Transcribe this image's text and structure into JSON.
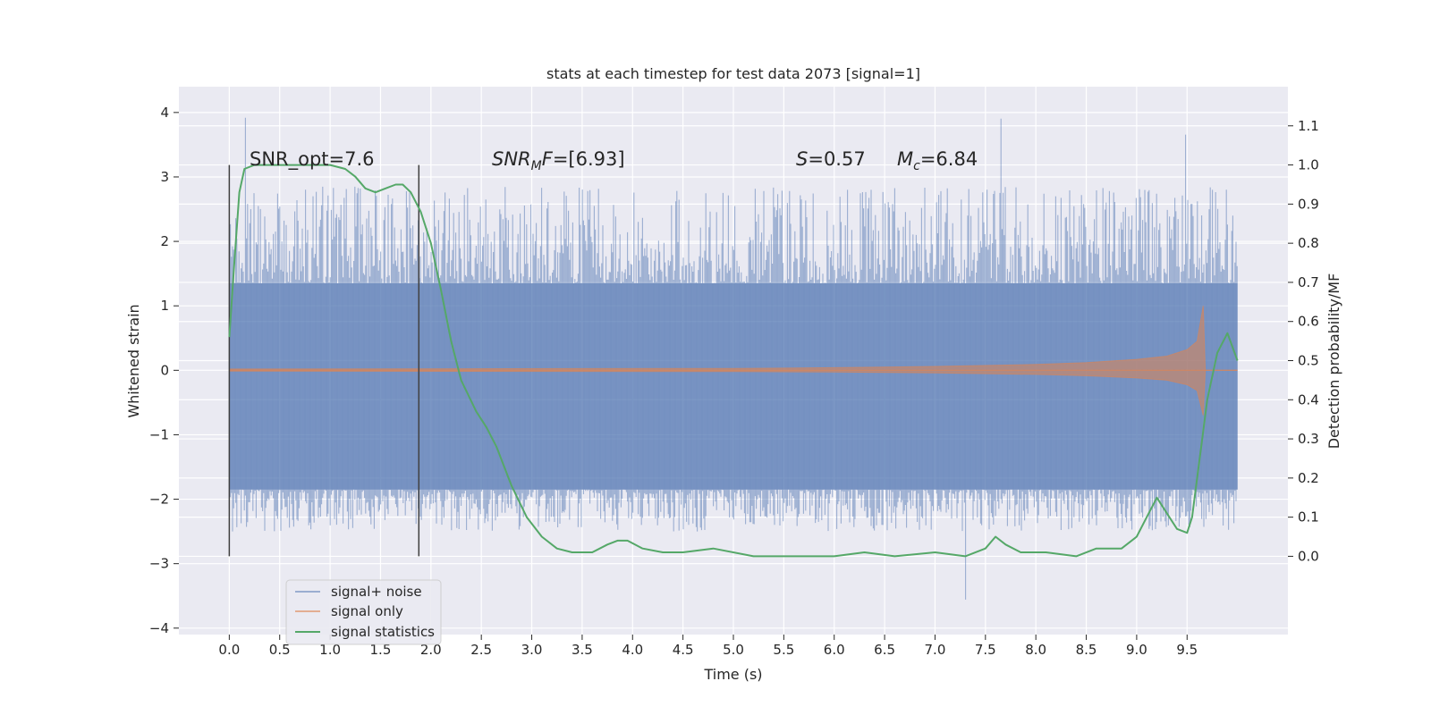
{
  "chart_data": {
    "type": "line",
    "title": "stats at each timestep for test data 2073 [signal=1]",
    "xlabel": "Time (s)",
    "ylabel_left": "Whitened strain",
    "ylabel_right": "Detection probability/MF",
    "xlim": [
      -0.5,
      10.5
    ],
    "ylim_left": [
      -4.1,
      4.4
    ],
    "ylim_right": [
      -0.2,
      1.2
    ],
    "x_ticks": [
      "0.0",
      "0.5",
      "1.0",
      "1.5",
      "2.0",
      "2.5",
      "3.0",
      "3.5",
      "4.0",
      "4.5",
      "5.0",
      "5.5",
      "6.0",
      "6.5",
      "7.0",
      "7.5",
      "8.0",
      "8.5",
      "9.0",
      "9.5"
    ],
    "y_ticks_left": [
      "−4",
      "−3",
      "−2",
      "−1",
      "0",
      "1",
      "2",
      "3",
      "4"
    ],
    "y_ticks_right": [
      "0.0",
      "0.1",
      "0.2",
      "0.3",
      "0.4",
      "0.5",
      "0.6",
      "0.7",
      "0.8",
      "0.9",
      "1.0",
      "1.1"
    ],
    "grid": true,
    "legend_placement": "lower-left",
    "legend": [
      "signal+ noise",
      "signal only",
      "signal statistics"
    ],
    "annotations": {
      "snr_opt": "SNR_opt=7.6",
      "snr_mf": "=[6.93]",
      "spin": "=0.57",
      "chirp_mass": "=6.84"
    },
    "vlines": [
      0.0,
      1.88
    ],
    "colors": {
      "background": "#eaeaf2",
      "grid": "#ffffff",
      "signal_noise": "#4c72b0",
      "signal_only": "#dd8452",
      "statistics": "#55a868",
      "vline": "#404040"
    },
    "series": [
      {
        "name": "signal+ noise",
        "x_range": [
          0.0,
          10.0
        ],
        "envelope_core": [
          -1.85,
          1.35
        ],
        "envelope_peaks": [
          -3.7,
          4.05
        ]
      },
      {
        "name": "signal only",
        "x": [
          0.0,
          5.0,
          6.0,
          7.0,
          8.0,
          8.5,
          9.0,
          9.3,
          9.5,
          9.6,
          9.66,
          9.68,
          10.0
        ],
        "amplitude": [
          0.02,
          0.03,
          0.04,
          0.06,
          0.09,
          0.12,
          0.17,
          0.22,
          0.32,
          0.45,
          1.0,
          0.0,
          0.0
        ]
      },
      {
        "name": "signal statistics",
        "x": [
          0.0,
          0.05,
          0.1,
          0.15,
          0.25,
          0.5,
          0.75,
          1.0,
          1.15,
          1.25,
          1.35,
          1.45,
          1.55,
          1.65,
          1.72,
          1.8,
          1.9,
          2.0,
          2.1,
          2.2,
          2.3,
          2.45,
          2.55,
          2.65,
          2.8,
          2.95,
          3.1,
          3.25,
          3.4,
          3.6,
          3.75,
          3.85,
          3.95,
          4.1,
          4.3,
          4.5,
          4.8,
          5.2,
          5.6,
          6.0,
          6.3,
          6.6,
          7.0,
          7.3,
          7.5,
          7.6,
          7.7,
          7.85,
          8.1,
          8.4,
          8.6,
          8.85,
          9.0,
          9.1,
          9.2,
          9.3,
          9.4,
          9.5,
          9.55,
          9.6,
          9.65,
          9.7,
          9.8,
          9.9,
          10.0
        ],
        "y": [
          0.56,
          0.75,
          0.93,
          0.99,
          1.0,
          1.0,
          1.0,
          1.0,
          0.99,
          0.97,
          0.94,
          0.93,
          0.94,
          0.95,
          0.95,
          0.93,
          0.88,
          0.8,
          0.68,
          0.55,
          0.45,
          0.37,
          0.33,
          0.28,
          0.18,
          0.1,
          0.05,
          0.02,
          0.01,
          0.01,
          0.03,
          0.04,
          0.04,
          0.02,
          0.01,
          0.01,
          0.02,
          0.0,
          0.0,
          0.0,
          0.01,
          0.0,
          0.01,
          0.0,
          0.02,
          0.05,
          0.03,
          0.01,
          0.01,
          0.0,
          0.02,
          0.02,
          0.05,
          0.1,
          0.15,
          0.11,
          0.07,
          0.06,
          0.1,
          0.2,
          0.3,
          0.4,
          0.52,
          0.57,
          0.5
        ]
      }
    ]
  }
}
